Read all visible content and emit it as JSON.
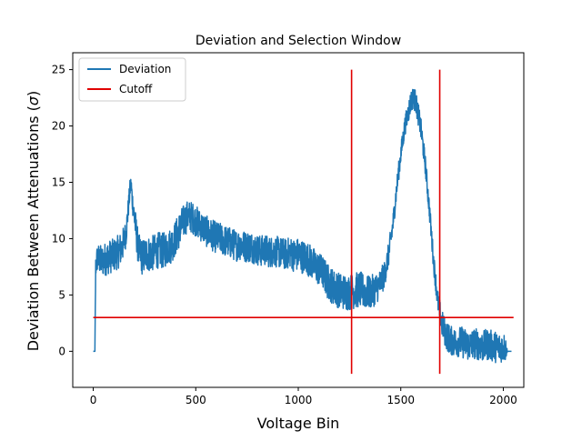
{
  "chart_data": {
    "type": "line",
    "title": "Deviation and Selection Window",
    "xlabel": "Voltage Bin",
    "ylabel_main": "Deviation Between Attenuations (",
    "ylabel_symbol": "σ",
    "ylabel_tail": ")",
    "xlim": [
      -100,
      2100
    ],
    "ylim": [
      -3.2,
      26.5
    ],
    "xticks": [
      0,
      500,
      1000,
      1500,
      2000
    ],
    "yticks": [
      0,
      5,
      10,
      15,
      20,
      25
    ],
    "legend_position": "upper-left",
    "series": [
      {
        "name": "Deviation",
        "color": "#1f77b4",
        "x": [
          0,
          8,
          12,
          20,
          40,
          60,
          80,
          100,
          120,
          140,
          160,
          170,
          180,
          185,
          190,
          200,
          210,
          220,
          240,
          260,
          280,
          300,
          320,
          340,
          360,
          380,
          400,
          420,
          440,
          460,
          480,
          500,
          520,
          540,
          560,
          580,
          600,
          620,
          640,
          660,
          680,
          700,
          720,
          740,
          760,
          780,
          800,
          820,
          840,
          860,
          880,
          900,
          920,
          940,
          960,
          980,
          1000,
          1020,
          1040,
          1060,
          1080,
          1100,
          1120,
          1140,
          1160,
          1180,
          1200,
          1220,
          1240,
          1260,
          1280,
          1300,
          1320,
          1340,
          1360,
          1380,
          1400,
          1420,
          1440,
          1460,
          1480,
          1500,
          1520,
          1540,
          1550,
          1560,
          1570,
          1580,
          1590,
          1600,
          1620,
          1640,
          1660,
          1680,
          1700,
          1720,
          1740,
          1760,
          1780,
          1800,
          1820,
          1840,
          1860,
          1880,
          1900,
          1920,
          1940,
          1960,
          1980,
          2000,
          2010,
          2020,
          2040
        ],
        "y": [
          0,
          0,
          7.5,
          8.3,
          8.0,
          8.2,
          8.4,
          8.5,
          8.8,
          9.2,
          10.5,
          12.5,
          14.5,
          14.8,
          13.5,
          12.0,
          10.5,
          9.0,
          8.3,
          8.7,
          8.6,
          8.8,
          9.0,
          8.9,
          9.2,
          9.4,
          10.0,
          10.8,
          11.5,
          12.0,
          11.9,
          11.6,
          11.2,
          10.9,
          10.5,
          10.3,
          10.1,
          10.0,
          9.8,
          9.7,
          9.5,
          9.4,
          9.5,
          9.3,
          9.3,
          9.2,
          9.0,
          8.9,
          9.0,
          8.8,
          8.9,
          8.8,
          8.7,
          8.6,
          8.8,
          8.5,
          8.6,
          8.4,
          8.3,
          8.0,
          7.6,
          7.3,
          7.0,
          6.3,
          5.9,
          5.6,
          5.4,
          5.3,
          5.2,
          5.3,
          5.4,
          5.5,
          5.3,
          5.2,
          5.3,
          5.6,
          6.0,
          6.8,
          8.5,
          11.0,
          14.5,
          17.5,
          20.0,
          21.5,
          22.2,
          22.5,
          22.3,
          21.5,
          20.6,
          19.5,
          16.5,
          12.5,
          8.0,
          4.5,
          2.5,
          1.5,
          1.0,
          0.8,
          0.9,
          0.8,
          0.6,
          0.5,
          0.7,
          0.6,
          0.4,
          0.6,
          0.5,
          0.4,
          0.3,
          0.4,
          0.3,
          0,
          0
        ],
        "noise_amplitude": [
          0,
          0,
          1.0,
          1.3,
          1.4,
          1.5,
          1.5,
          1.5,
          1.5,
          1.5,
          1.2,
          1.0,
          0.9,
          0.9,
          1.0,
          1.2,
          1.5,
          1.5,
          1.6,
          1.6,
          1.6,
          1.6,
          1.6,
          1.6,
          1.6,
          1.6,
          1.6,
          1.6,
          1.5,
          1.4,
          1.4,
          1.4,
          1.4,
          1.4,
          1.4,
          1.4,
          1.4,
          1.4,
          1.4,
          1.4,
          1.4,
          1.4,
          1.4,
          1.4,
          1.4,
          1.4,
          1.4,
          1.4,
          1.4,
          1.4,
          1.4,
          1.4,
          1.4,
          1.4,
          1.4,
          1.5,
          1.5,
          1.5,
          1.5,
          1.5,
          1.5,
          1.5,
          1.5,
          1.6,
          1.6,
          1.6,
          1.6,
          1.6,
          1.6,
          1.6,
          1.6,
          1.6,
          1.6,
          1.5,
          1.5,
          1.4,
          1.3,
          1.2,
          1.1,
          1.0,
          0.9,
          0.9,
          0.9,
          1.0,
          1.0,
          1.0,
          1.0,
          1.0,
          1.0,
          1.0,
          0.9,
          0.9,
          0.9,
          1.0,
          1.2,
          1.3,
          1.3,
          1.3,
          1.4,
          1.4,
          1.4,
          1.4,
          1.4,
          1.4,
          1.4,
          1.4,
          1.4,
          1.4,
          1.4,
          1.3,
          1.3,
          0,
          0
        ]
      },
      {
        "name": "Cutoff",
        "color": "#e00000",
        "segments": [
          {
            "x": [
              0,
              2050
            ],
            "y": [
              3,
              3
            ]
          },
          {
            "x": [
              1260,
              1260
            ],
            "y": [
              -2,
              25
            ]
          },
          {
            "x": [
              1690,
              1690
            ],
            "y": [
              -2,
              25
            ]
          }
        ]
      }
    ]
  }
}
